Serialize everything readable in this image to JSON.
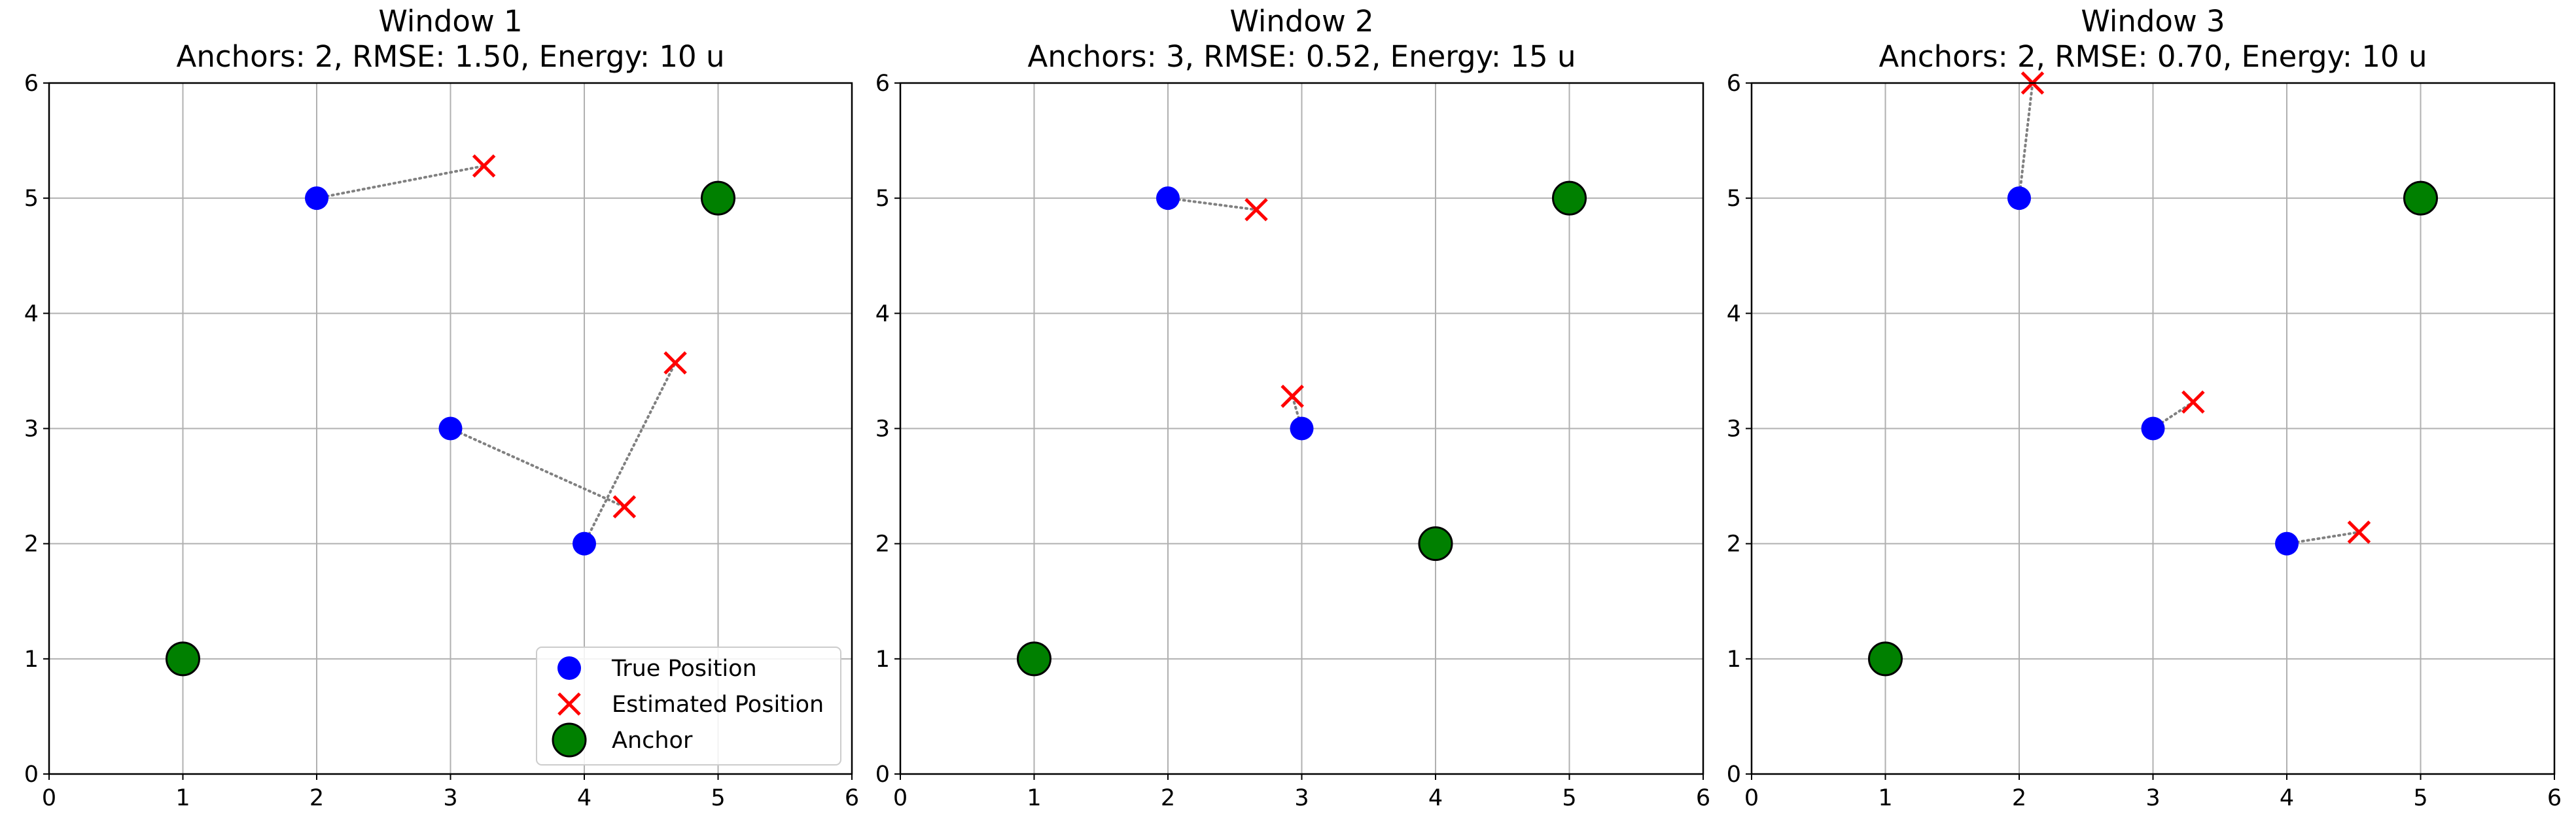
{
  "chart_data": [
    {
      "type": "scatter",
      "title": "Window 1",
      "subtitle": "Anchors: 2, RMSE: 1.50, Energy: 10 u",
      "xlim": [
        0,
        6
      ],
      "ylim": [
        0,
        6
      ],
      "xticks": [
        "0",
        "1",
        "2",
        "3",
        "4",
        "5",
        "6"
      ],
      "yticks": [
        "0",
        "1",
        "2",
        "3",
        "4",
        "5",
        "6"
      ],
      "grid": true,
      "legend_position": "lower-right",
      "series": [
        {
          "name": "True Position",
          "marker": "circle",
          "color": "#0000ff",
          "points": [
            [
              2,
              5
            ],
            [
              3,
              3
            ],
            [
              4,
              2
            ]
          ]
        },
        {
          "name": "Estimated Position",
          "marker": "x",
          "color": "#ff0000",
          "points": [
            [
              3.25,
              5.28
            ],
            [
              4.3,
              2.32
            ],
            [
              4.68,
              3.57
            ]
          ]
        },
        {
          "name": "Anchor",
          "marker": "circle",
          "color": "#008000",
          "points": [
            [
              1,
              1
            ],
            [
              5,
              5
            ]
          ]
        }
      ],
      "links": [
        [
          0,
          0
        ],
        [
          1,
          1
        ],
        [
          2,
          2
        ]
      ]
    },
    {
      "type": "scatter",
      "title": "Window 2",
      "subtitle": "Anchors: 3, RMSE: 0.52, Energy: 15 u",
      "xlim": [
        0,
        6
      ],
      "ylim": [
        0,
        6
      ],
      "xticks": [
        "0",
        "1",
        "2",
        "3",
        "4",
        "5",
        "6"
      ],
      "yticks": [
        "0",
        "1",
        "2",
        "3",
        "4",
        "5",
        "6"
      ],
      "grid": true,
      "series": [
        {
          "name": "True Position",
          "marker": "circle",
          "color": "#0000ff",
          "points": [
            [
              2,
              5
            ],
            [
              3,
              3
            ]
          ]
        },
        {
          "name": "Estimated Position",
          "marker": "x",
          "color": "#ff0000",
          "points": [
            [
              2.66,
              4.9
            ],
            [
              2.93,
              3.28
            ]
          ]
        },
        {
          "name": "Anchor",
          "marker": "circle",
          "color": "#008000",
          "points": [
            [
              1,
              1
            ],
            [
              4,
              2
            ],
            [
              5,
              5
            ]
          ]
        }
      ],
      "links": [
        [
          0,
          0
        ],
        [
          1,
          1
        ]
      ]
    },
    {
      "type": "scatter",
      "title": "Window 3",
      "subtitle": "Anchors: 2, RMSE: 0.70, Energy: 10 u",
      "xlim": [
        0,
        6
      ],
      "ylim": [
        0,
        6
      ],
      "xticks": [
        "0",
        "1",
        "2",
        "3",
        "4",
        "5",
        "6"
      ],
      "yticks": [
        "0",
        "1",
        "2",
        "3",
        "4",
        "5",
        "6"
      ],
      "grid": true,
      "series": [
        {
          "name": "True Position",
          "marker": "circle",
          "color": "#0000ff",
          "points": [
            [
              2,
              5
            ],
            [
              3,
              3
            ],
            [
              4,
              2
            ]
          ]
        },
        {
          "name": "Estimated Position",
          "marker": "x",
          "color": "#ff0000",
          "points": [
            [
              2.1,
              6.0
            ],
            [
              3.3,
              3.23
            ],
            [
              4.54,
              2.1
            ]
          ]
        },
        {
          "name": "Anchor",
          "marker": "circle",
          "color": "#008000",
          "points": [
            [
              1,
              1
            ],
            [
              5,
              5
            ]
          ]
        }
      ],
      "links": [
        [
          0,
          0
        ],
        [
          1,
          1
        ],
        [
          2,
          2
        ]
      ]
    }
  ],
  "legend": {
    "items": [
      {
        "label": "True Position",
        "marker": "circle",
        "color": "#0000ff"
      },
      {
        "label": "Estimated Position",
        "marker": "x",
        "color": "#ff0000"
      },
      {
        "label": "Anchor",
        "marker": "circle",
        "color": "#008000"
      }
    ]
  },
  "colors": {
    "grid": "#b0b0b0",
    "link": "#808080",
    "axes": "#000000",
    "anchor_edge": "#000000"
  }
}
